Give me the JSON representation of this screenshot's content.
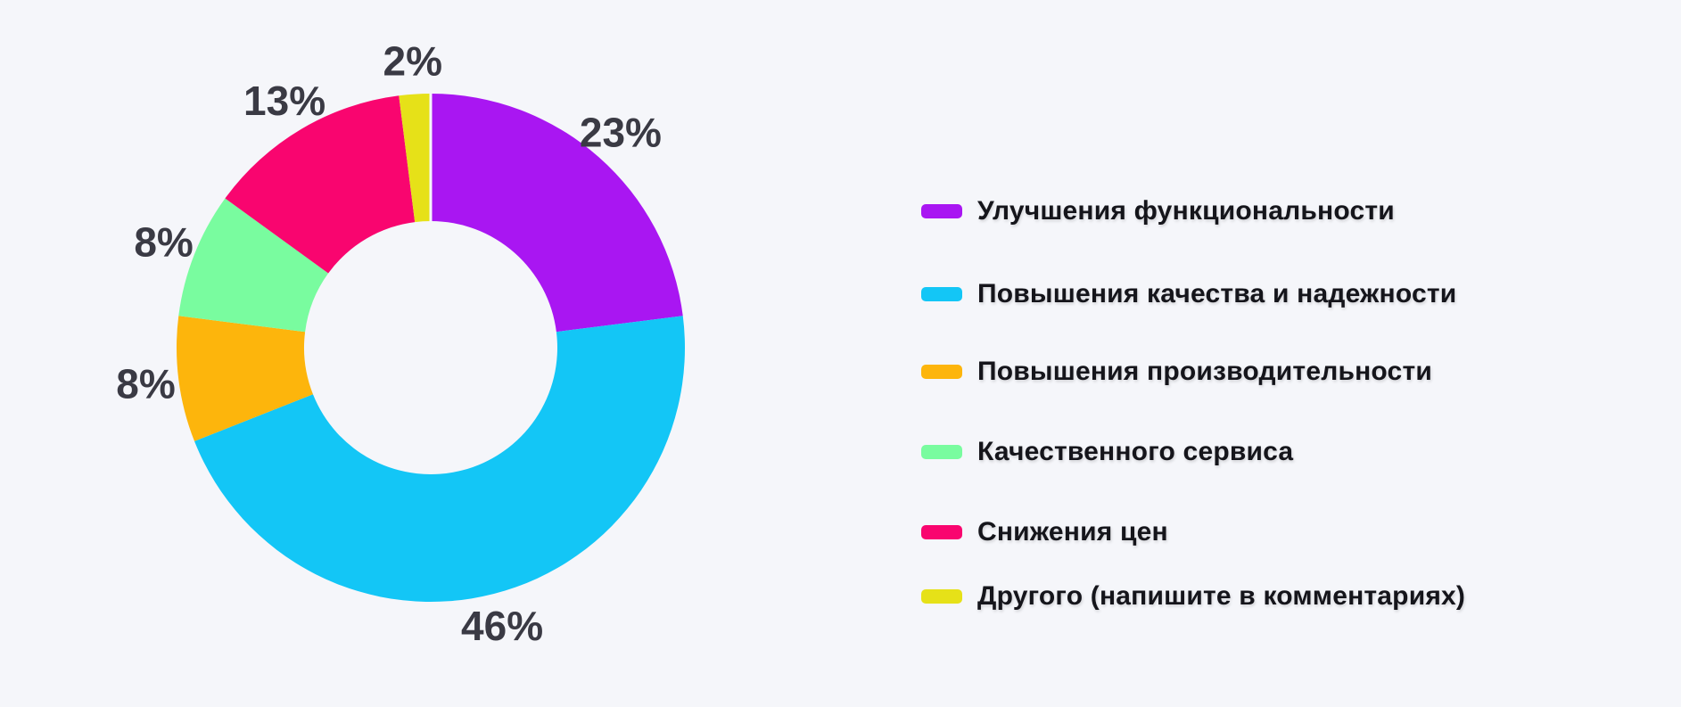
{
  "chart_data": {
    "type": "pie",
    "subtype": "donut",
    "title": "",
    "direction": "clockwise",
    "start_angle_deg": 0,
    "legend_position": "right",
    "categories": [
      "Улучшения функциональности",
      "Повышения качества и надежности",
      "Повышения производительности",
      "Качественного сервиса",
      "Снижения цен",
      "Другого (напишите в комментариях)"
    ],
    "values": [
      23,
      46,
      8,
      8,
      13,
      2
    ],
    "percent_labels": [
      "23%",
      "46%",
      "8%",
      "8%",
      "13%",
      "2%"
    ],
    "colors": [
      "#A916F2",
      "#13C6F6",
      "#FDB50C",
      "#79FC9F",
      "#F9056F",
      "#E6E118"
    ]
  },
  "legend": {
    "items": [
      {
        "label": "Улучшения функциональности",
        "color": "#A916F2"
      },
      {
        "label": "Повышения качества и надежности",
        "color": "#13C6F6"
      },
      {
        "label": "Повышения производительности",
        "color": "#FDB50C"
      },
      {
        "label": "Качественного сервиса",
        "color": "#79FC9F"
      },
      {
        "label": "Снижения цен",
        "color": "#F9056F"
      },
      {
        "label": "Другого (напишите в комментариях)",
        "color": "#E6E118"
      }
    ]
  },
  "theme": {
    "background": "#F5F6FA",
    "percent_label_color": "#3A3A44",
    "legend_text_color": "#15151B"
  }
}
